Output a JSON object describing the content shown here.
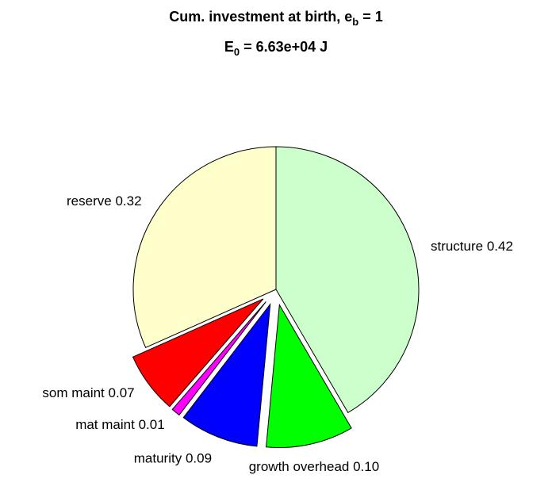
{
  "chart_data": {
    "type": "pie",
    "title": [
      "Cum. investment at birth, e",
      "b",
      " = 1"
    ],
    "subtitle": [
      "E",
      "0",
      " = 6.63e+04 J"
    ],
    "categories": [
      "structure",
      "growth overhead",
      "maturity",
      "mat maint",
      "som maint",
      "reserve"
    ],
    "values": [
      0.42,
      0.1,
      0.09,
      0.01,
      0.07,
      0.32
    ],
    "value_labels": [
      "0.42",
      "0.10",
      "0.09",
      "0.01",
      "0.07",
      "0.32"
    ],
    "colors": [
      "#ccffcc",
      "#00ff00",
      "#0000ff",
      "#ff00ff",
      "#ff0000",
      "#ffffcc"
    ],
    "explode": [
      0,
      1,
      1,
      1,
      1,
      0
    ]
  }
}
